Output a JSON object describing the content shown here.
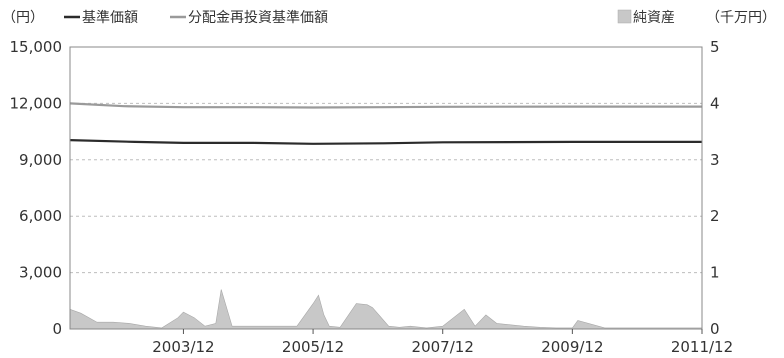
{
  "chart_data": {
    "type": "line",
    "left_unit": "（円）",
    "right_unit": "（千万円）",
    "legend": {
      "series1": "基準価額",
      "series2": "分配金再投資基準価額",
      "area": "純資産"
    },
    "x_ticks": [
      "2003/12",
      "2005/12",
      "2007/12",
      "2009/12",
      "2011/12"
    ],
    "y_left_ticks": [
      "0",
      "3,000",
      "6,000",
      "9,000",
      "12,000",
      "15,000"
    ],
    "y_right_ticks": [
      "0",
      "1",
      "2",
      "3",
      "4",
      "5"
    ],
    "y_left_range": [
      0,
      15000
    ],
    "y_right_range": [
      0,
      5
    ],
    "x_range": [
      "2002/03",
      "2011/12"
    ],
    "grid": true,
    "legend_position": "top",
    "colors": {
      "nav_line": "#2b2b2b",
      "reinvest_line": "#9a9a9a",
      "area": "#c8c8c8"
    },
    "series": [
      {
        "name": "基準価額",
        "x": [
          "2002/03",
          "2003/03",
          "2003/12",
          "2005/01",
          "2005/12",
          "2007/01",
          "2007/12",
          "2009/12",
          "2011/12"
        ],
        "values": [
          10050,
          9950,
          9900,
          9900,
          9850,
          9880,
          9930,
          9950,
          9950
        ]
      },
      {
        "name": "分配金再投資基準価額",
        "x": [
          "2002/03",
          "2003/01",
          "2003/12",
          "2005/01",
          "2005/12",
          "2006/12",
          "2007/12",
          "2009/12",
          "2011/12"
        ],
        "values": [
          12000,
          11850,
          11800,
          11800,
          11780,
          11800,
          11820,
          11830,
          11830
        ]
      },
      {
        "name": "純資産",
        "type": "area",
        "x": [
          "2002/03",
          "2002/05",
          "2002/08",
          "2002/11",
          "2003/02",
          "2003/05",
          "2003/08",
          "2003/11",
          "2003/12",
          "2004/02",
          "2004/04",
          "2004/06",
          "2004/07",
          "2004/09",
          "2005/01",
          "2005/05",
          "2005/09",
          "2005/12",
          "2006/01",
          "2006/02",
          "2006/03",
          "2006/05",
          "2006/08",
          "2006/10",
          "2006/11",
          "2007/02",
          "2007/04",
          "2007/06",
          "2007/09",
          "2007/12",
          "2008/04",
          "2008/06",
          "2008/08",
          "2008/10",
          "2009/03",
          "2009/06",
          "2009/09",
          "2009/12",
          "2010/01",
          "2010/06",
          "2011/03",
          "2011/12"
        ],
        "values": [
          0.35,
          0.28,
          0.12,
          0.12,
          0.1,
          0.05,
          0.02,
          0.2,
          0.3,
          0.2,
          0.05,
          0.1,
          0.7,
          0.05,
          0.05,
          0.05,
          0.05,
          0.45,
          0.6,
          0.25,
          0.05,
          0.03,
          0.45,
          0.43,
          0.38,
          0.05,
          0.03,
          0.05,
          0.02,
          0.05,
          0.35,
          0.05,
          0.25,
          0.1,
          0.05,
          0.03,
          0.02,
          0.02,
          0.15,
          0.02,
          0.02,
          0.02
        ]
      }
    ]
  }
}
